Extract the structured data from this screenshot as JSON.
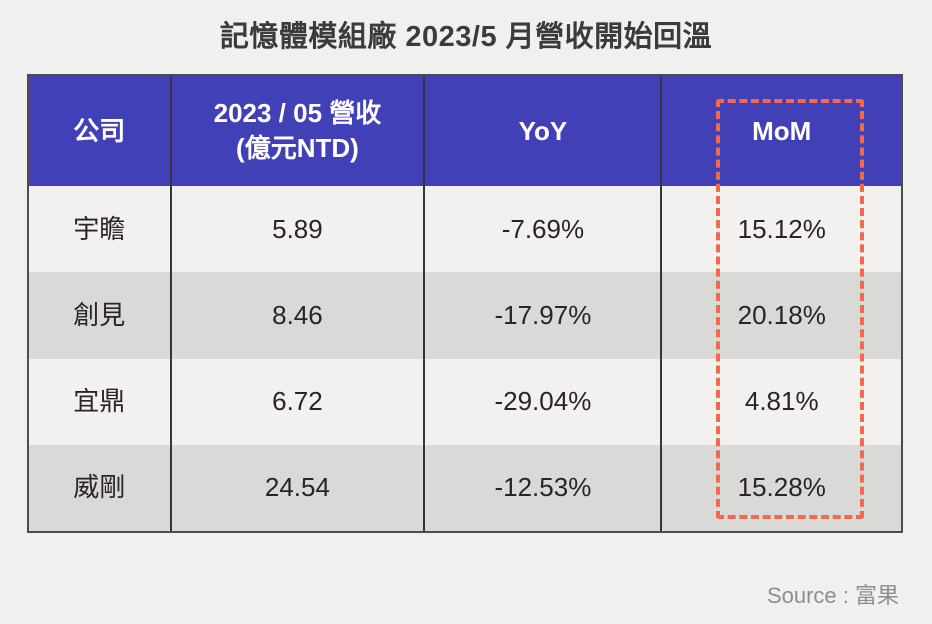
{
  "title": "記憶體模組廠 2023/5 月營收開始回溫",
  "source_label": "Source : 富果",
  "colors": {
    "header_bg": "#4140b6",
    "header_text": "#ffffff",
    "row_light": "#f2f1f0",
    "row_dark": "#d9d9d8",
    "highlight_dashed": "#f4684b",
    "body_text": "#2b2422",
    "page_bg": "#f0f0ef"
  },
  "table": {
    "header": {
      "company": "公司",
      "revenue_line1": "2023 / 05 營收",
      "revenue_line2": "(億元NTD)",
      "yoy": "YoY",
      "mom": "MoM"
    },
    "rows": [
      {
        "company": "宇瞻",
        "revenue": "5.89",
        "yoy": "-7.69%",
        "mom": "15.12%"
      },
      {
        "company": "創見",
        "revenue": "8.46",
        "yoy": "-17.97%",
        "mom": "20.18%"
      },
      {
        "company": "宜鼎",
        "revenue": "6.72",
        "yoy": "-29.04%",
        "mom": "4.81%"
      },
      {
        "company": "威剛",
        "revenue": "24.54",
        "yoy": "-12.53%",
        "mom": "15.28%"
      }
    ],
    "highlighted_column": "MoM"
  },
  "chart_data": {
    "type": "table",
    "title": "記憶體模組廠 2023/5 月營收開始回溫",
    "columns": [
      "公司",
      "2023 / 05 營收 (億元NTD)",
      "YoY",
      "MoM"
    ],
    "rows": [
      [
        "宇瞻",
        5.89,
        "-7.69%",
        "15.12%"
      ],
      [
        "創見",
        8.46,
        "-17.97%",
        "20.18%"
      ],
      [
        "宜鼎",
        6.72,
        "-29.04%",
        "4.81%"
      ],
      [
        "威剛",
        24.54,
        "-12.53%",
        "15.28%"
      ]
    ],
    "highlighted_column": "MoM",
    "source": "Source : 富果"
  }
}
